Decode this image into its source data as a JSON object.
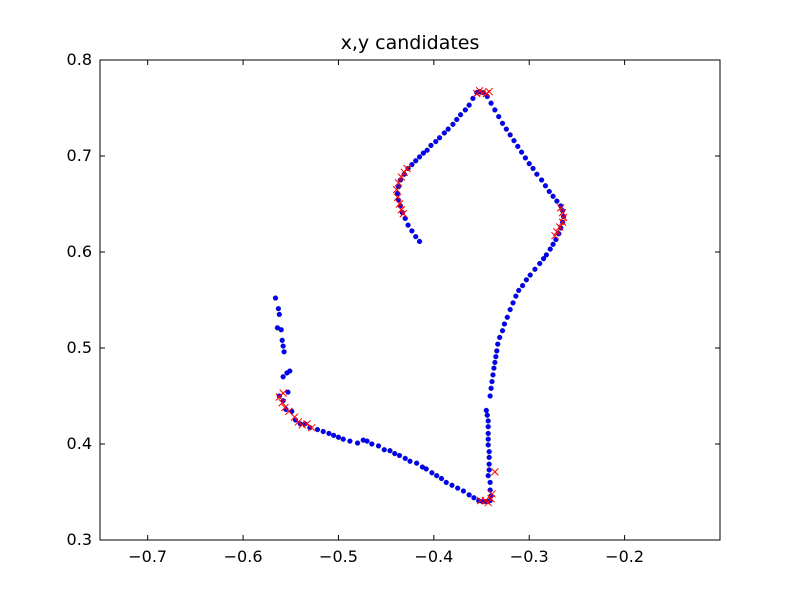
{
  "chart_data": {
    "type": "scatter",
    "title": "x,y candidates",
    "xlabel": "",
    "ylabel": "",
    "xlim": [
      -0.75,
      -0.1
    ],
    "ylim": [
      0.3,
      0.8
    ],
    "x_ticks": [
      -0.7,
      -0.6,
      -0.5,
      -0.4,
      -0.3,
      -0.2
    ],
    "x_tick_labels": [
      "−0.7",
      "−0.6",
      "−0.5",
      "−0.4",
      "−0.3",
      "−0.2"
    ],
    "y_ticks": [
      0.3,
      0.4,
      0.5,
      0.6,
      0.7,
      0.8
    ],
    "y_tick_labels": [
      "0.3",
      "0.4",
      "0.5",
      "0.6",
      "0.7",
      "0.8"
    ],
    "grid": false,
    "series": [
      {
        "marker": "dot",
        "color": "#0000ff",
        "points": [
          [
            -0.566,
            0.552
          ],
          [
            -0.563,
            0.541
          ],
          [
            -0.562,
            0.535
          ],
          [
            -0.564,
            0.521
          ],
          [
            -0.56,
            0.519
          ],
          [
            -0.559,
            0.508
          ],
          [
            -0.558,
            0.502
          ],
          [
            -0.557,
            0.496
          ],
          [
            -0.554,
            0.474
          ],
          [
            -0.551,
            0.476
          ],
          [
            -0.558,
            0.47
          ],
          [
            -0.562,
            0.45
          ],
          [
            -0.558,
            0.445
          ],
          [
            -0.553,
            0.454
          ],
          [
            -0.555,
            0.436
          ],
          [
            -0.549,
            0.434
          ],
          [
            -0.545,
            0.425
          ],
          [
            -0.54,
            0.421
          ],
          [
            -0.535,
            0.421
          ],
          [
            -0.53,
            0.417
          ],
          [
            -0.522,
            0.415
          ],
          [
            -0.516,
            0.413
          ],
          [
            -0.51,
            0.411
          ],
          [
            -0.505,
            0.409
          ],
          [
            -0.5,
            0.407
          ],
          [
            -0.495,
            0.405
          ],
          [
            -0.488,
            0.403
          ],
          [
            -0.48,
            0.401
          ],
          [
            -0.474,
            0.404
          ],
          [
            -0.47,
            0.403
          ],
          [
            -0.465,
            0.4
          ],
          [
            -0.458,
            0.398
          ],
          [
            -0.452,
            0.394
          ],
          [
            -0.446,
            0.393
          ],
          [
            -0.441,
            0.39
          ],
          [
            -0.436,
            0.388
          ],
          [
            -0.43,
            0.385
          ],
          [
            -0.425,
            0.382
          ],
          [
            -0.418,
            0.38
          ],
          [
            -0.412,
            0.376
          ],
          [
            -0.408,
            0.374
          ],
          [
            -0.402,
            0.37
          ],
          [
            -0.397,
            0.367
          ],
          [
            -0.392,
            0.364
          ],
          [
            -0.387,
            0.36
          ],
          [
            -0.381,
            0.357
          ],
          [
            -0.375,
            0.354
          ],
          [
            -0.369,
            0.351
          ],
          [
            -0.363,
            0.347
          ],
          [
            -0.358,
            0.344
          ],
          [
            -0.353,
            0.341
          ],
          [
            -0.349,
            0.34
          ],
          [
            -0.345,
            0.34
          ],
          [
            -0.341,
            0.341
          ],
          [
            -0.34,
            0.346
          ],
          [
            -0.341,
            0.352
          ],
          [
            -0.341,
            0.36
          ],
          [
            -0.343,
            0.367
          ],
          [
            -0.342,
            0.373
          ],
          [
            -0.342,
            0.379
          ],
          [
            -0.342,
            0.386
          ],
          [
            -0.342,
            0.392
          ],
          [
            -0.343,
            0.399
          ],
          [
            -0.343,
            0.405
          ],
          [
            -0.343,
            0.411
          ],
          [
            -0.343,
            0.418
          ],
          [
            -0.343,
            0.424
          ],
          [
            -0.344,
            0.43
          ],
          [
            -0.345,
            0.435
          ],
          [
            -0.341,
            0.45
          ],
          [
            -0.34,
            0.458
          ],
          [
            -0.339,
            0.465
          ],
          [
            -0.338,
            0.472
          ],
          [
            -0.337,
            0.479
          ],
          [
            -0.336,
            0.485
          ],
          [
            -0.335,
            0.491
          ],
          [
            -0.334,
            0.497
          ],
          [
            -0.333,
            0.504
          ],
          [
            -0.331,
            0.511
          ],
          [
            -0.328,
            0.518
          ],
          [
            -0.326,
            0.525
          ],
          [
            -0.323,
            0.532
          ],
          [
            -0.32,
            0.54
          ],
          [
            -0.317,
            0.547
          ],
          [
            -0.314,
            0.554
          ],
          [
            -0.311,
            0.56
          ],
          [
            -0.307,
            0.565
          ],
          [
            -0.303,
            0.571
          ],
          [
            -0.299,
            0.576
          ],
          [
            -0.294,
            0.582
          ],
          [
            -0.289,
            0.588
          ],
          [
            -0.285,
            0.593
          ],
          [
            -0.282,
            0.597
          ],
          [
            -0.278,
            0.603
          ],
          [
            -0.275,
            0.608
          ],
          [
            -0.272,
            0.613
          ],
          [
            -0.269,
            0.619
          ],
          [
            -0.267,
            0.625
          ],
          [
            -0.265,
            0.631
          ],
          [
            -0.264,
            0.637
          ],
          [
            -0.265,
            0.643
          ],
          [
            -0.267,
            0.648
          ],
          [
            -0.271,
            0.653
          ],
          [
            -0.275,
            0.658
          ],
          [
            -0.279,
            0.663
          ],
          [
            -0.283,
            0.669
          ],
          [
            -0.287,
            0.675
          ],
          [
            -0.292,
            0.681
          ],
          [
            -0.296,
            0.687
          ],
          [
            -0.3,
            0.692
          ],
          [
            -0.304,
            0.698
          ],
          [
            -0.308,
            0.704
          ],
          [
            -0.312,
            0.71
          ],
          [
            -0.316,
            0.716
          ],
          [
            -0.32,
            0.722
          ],
          [
            -0.324,
            0.728
          ],
          [
            -0.328,
            0.734
          ],
          [
            -0.332,
            0.741
          ],
          [
            -0.336,
            0.748
          ],
          [
            -0.34,
            0.755
          ],
          [
            -0.344,
            0.762
          ],
          [
            -0.348,
            0.766
          ],
          [
            -0.352,
            0.767
          ],
          [
            -0.355,
            0.766
          ],
          [
            -0.359,
            0.76
          ],
          [
            -0.363,
            0.753
          ],
          [
            -0.367,
            0.748
          ],
          [
            -0.372,
            0.743
          ],
          [
            -0.376,
            0.738
          ],
          [
            -0.38,
            0.733
          ],
          [
            -0.385,
            0.728
          ],
          [
            -0.389,
            0.724
          ],
          [
            -0.394,
            0.719
          ],
          [
            -0.398,
            0.715
          ],
          [
            -0.403,
            0.711
          ],
          [
            -0.407,
            0.706
          ],
          [
            -0.411,
            0.703
          ],
          [
            -0.415,
            0.699
          ],
          [
            -0.419,
            0.695
          ],
          [
            -0.423,
            0.691
          ],
          [
            -0.427,
            0.687
          ],
          [
            -0.431,
            0.681
          ],
          [
            -0.435,
            0.675
          ],
          [
            -0.437,
            0.668
          ],
          [
            -0.438,
            0.661
          ],
          [
            -0.437,
            0.654
          ],
          [
            -0.435,
            0.648
          ],
          [
            -0.433,
            0.641
          ],
          [
            -0.43,
            0.635
          ],
          [
            -0.427,
            0.628
          ],
          [
            -0.423,
            0.622
          ],
          [
            -0.419,
            0.616
          ],
          [
            -0.415,
            0.611
          ]
        ]
      },
      {
        "marker": "x",
        "color": "#ff0000",
        "points": [
          [
            -0.352,
            0.768
          ],
          [
            -0.349,
            0.766
          ],
          [
            -0.345,
            0.765
          ],
          [
            -0.342,
            0.767
          ],
          [
            -0.355,
            0.765
          ],
          [
            -0.428,
            0.687
          ],
          [
            -0.431,
            0.683
          ],
          [
            -0.434,
            0.678
          ],
          [
            -0.437,
            0.672
          ],
          [
            -0.439,
            0.665
          ],
          [
            -0.438,
            0.657
          ],
          [
            -0.436,
            0.65
          ],
          [
            -0.434,
            0.644
          ],
          [
            -0.432,
            0.64
          ],
          [
            -0.267,
            0.646
          ],
          [
            -0.265,
            0.641
          ],
          [
            -0.264,
            0.636
          ],
          [
            -0.265,
            0.631
          ],
          [
            -0.268,
            0.626
          ],
          [
            -0.271,
            0.621
          ],
          [
            -0.273,
            0.617
          ],
          [
            -0.562,
            0.449
          ],
          [
            -0.558,
            0.453
          ],
          [
            -0.559,
            0.443
          ],
          [
            -0.556,
            0.438
          ],
          [
            -0.552,
            0.434
          ],
          [
            -0.546,
            0.428
          ],
          [
            -0.542,
            0.423
          ],
          [
            -0.538,
            0.42
          ],
          [
            -0.533,
            0.421
          ],
          [
            -0.528,
            0.417
          ],
          [
            -0.346,
            0.341
          ],
          [
            -0.343,
            0.339
          ],
          [
            -0.34,
            0.343
          ],
          [
            -0.339,
            0.348
          ],
          [
            -0.336,
            0.371
          ],
          [
            -0.351,
            0.341
          ]
        ]
      }
    ]
  }
}
